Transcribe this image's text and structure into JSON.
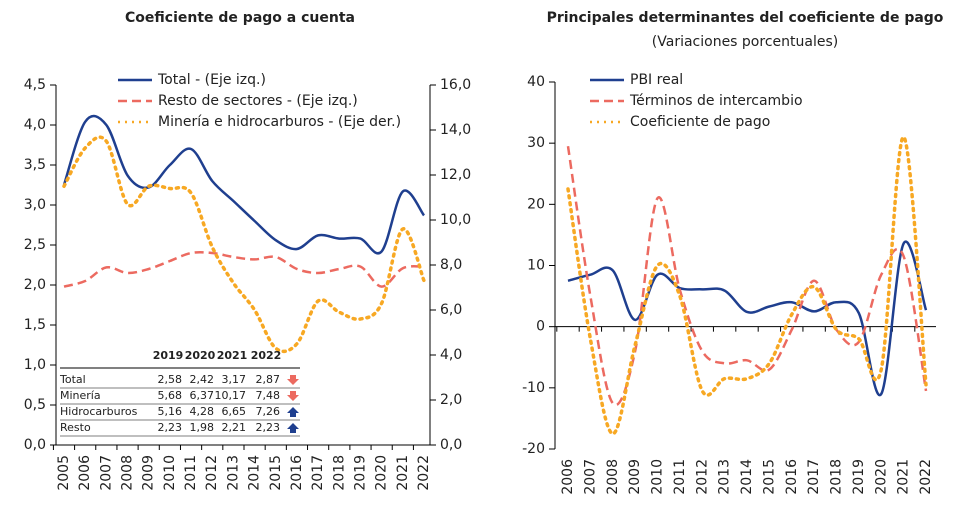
{
  "chart_data": [
    {
      "type": "line",
      "title": "Coeficiente de pago a cuenta",
      "categories": [
        "2005",
        "2006",
        "2007",
        "2008",
        "2009",
        "2010",
        "2011",
        "2012",
        "2013",
        "2014",
        "2015",
        "2016",
        "2017",
        "2018",
        "2019",
        "2020",
        "2021",
        "2022"
      ],
      "ylim": [
        0,
        4.5
      ],
      "yticks": [
        {
          "value": 0,
          "label": "0,0"
        },
        {
          "value": 0.5,
          "label": "0,5"
        },
        {
          "value": 1,
          "label": "1,0"
        },
        {
          "value": 1.5,
          "label": "1,5"
        },
        {
          "value": 2,
          "label": "2,0"
        },
        {
          "value": 2.5,
          "label": "2,5"
        },
        {
          "value": 3,
          "label": "3,0"
        },
        {
          "value": 3.5,
          "label": "3,5"
        },
        {
          "value": 4,
          "label": "4,0"
        },
        {
          "value": 4.5,
          "label": "4,5"
        }
      ],
      "y2lim": [
        0,
        16
      ],
      "y2ticks": [
        {
          "value": 0,
          "label": "0,0"
        },
        {
          "value": 2,
          "label": "2,0"
        },
        {
          "value": 4,
          "label": "4,0"
        },
        {
          "value": 6,
          "label": "6,0"
        },
        {
          "value": 8,
          "label": "8,0"
        },
        {
          "value": 10,
          "label": "10,0"
        },
        {
          "value": 12,
          "label": "12,0"
        },
        {
          "value": 14,
          "label": "14,0"
        },
        {
          "value": 16,
          "label": "16,0"
        }
      ],
      "series": [
        {
          "name": "Total - (Eje izq.)",
          "color": "#1f3f8f",
          "style": "solid",
          "values": [
            3.25,
            4.04,
            4.0,
            3.37,
            3.22,
            3.5,
            3.7,
            3.3,
            3.05,
            2.8,
            2.56,
            2.45,
            2.62,
            2.58,
            2.58,
            2.42,
            3.17,
            2.87
          ]
        },
        {
          "name": "Resto de sectores - (Eje izq.)",
          "color": "#ec6a60",
          "style": "dashed",
          "values": [
            1.98,
            2.05,
            2.22,
            2.15,
            2.2,
            2.3,
            2.4,
            2.4,
            2.35,
            2.32,
            2.35,
            2.2,
            2.15,
            2.2,
            2.23,
            1.98,
            2.21,
            2.23
          ]
        },
        {
          "name": "Minería e hidrocarburos - (Eje der.)",
          "color": "#f7a823",
          "style": "dotted",
          "axis": "y2",
          "values": [
            11.5,
            13.2,
            13.5,
            10.7,
            11.5,
            11.4,
            11.2,
            8.8,
            7.2,
            6.0,
            4.3,
            4.5,
            6.4,
            5.9,
            5.6,
            6.3,
            9.6,
            7.3
          ]
        }
      ]
    },
    {
      "type": "line",
      "title": "Principales determinantes del coeficiente de pago",
      "subtitle": "(Variaciones porcentuales)",
      "categories": [
        "2006",
        "2007",
        "2008",
        "2009",
        "2010",
        "2011",
        "2012",
        "2013",
        "2014",
        "2015",
        "2016",
        "2017",
        "2018",
        "2019",
        "2020",
        "2021",
        "2022"
      ],
      "ylim": [
        -20,
        40
      ],
      "yticks": [
        -20,
        -10,
        0,
        10,
        20,
        30,
        40
      ],
      "series": [
        {
          "name": "PBI real",
          "color": "#1f3f8f",
          "style": "solid",
          "values": [
            7.5,
            8.5,
            9.2,
            1.1,
            8.5,
            6.3,
            6.1,
            5.9,
            2.4,
            3.3,
            4.0,
            2.5,
            4.0,
            2.2,
            -11.0,
            13.6,
            2.7
          ]
        },
        {
          "name": "Términos de intercambio",
          "color": "#ec6a60",
          "style": "dashed",
          "values": [
            29.5,
            5,
            -12.5,
            -4,
            21,
            6,
            -4,
            -6,
            -5.5,
            -7,
            -0.5,
            7.5,
            -0.5,
            -2.5,
            8.5,
            11.5,
            -10.5
          ]
        },
        {
          "name": "Coeficiente de pago",
          "color": "#f7a823",
          "style": "dotted",
          "values": [
            22.5,
            -2,
            -17.5,
            -3,
            10,
            5,
            -10.5,
            -8.5,
            -8.5,
            -6,
            2,
            6.5,
            -0.5,
            -2,
            -7,
            31,
            -9.5
          ]
        }
      ]
    }
  ],
  "table": {
    "columns": [
      "2019",
      "2020",
      "2021",
      "2022"
    ],
    "rows": [
      [
        "Total",
        "2,58",
        "2,42",
        "3,17",
        "2,87"
      ],
      [
        "Minería",
        "5,68",
        "6,37",
        "10,17",
        "7,48"
      ],
      [
        "Hidrocarburos",
        "5,16",
        "4,28",
        "6,65",
        "7,26"
      ],
      [
        "Resto",
        "2,23",
        "1,98",
        "2,21",
        "2,23"
      ]
    ]
  }
}
